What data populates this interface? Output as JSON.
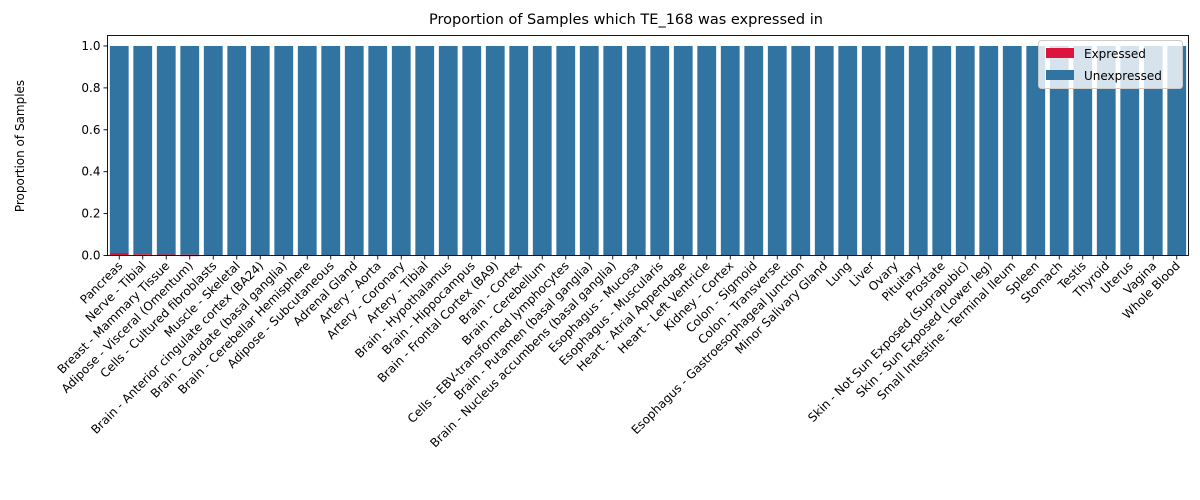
{
  "chart_data": {
    "type": "bar",
    "stacked": true,
    "title": "Proportion of Samples which TE_168 was expressed in",
    "xlabel": "",
    "ylabel": "Proportion of Samples",
    "ylim": [
      0,
      1.05
    ],
    "yticks": [
      "0.0",
      "0.2",
      "0.4",
      "0.6",
      "0.8",
      "1.0"
    ],
    "legend_position": "top-right",
    "grid": false,
    "categories": [
      "Pancreas",
      "Nerve - Tibial",
      "Breast - Mammary Tissue",
      "Adipose - Visceral (Omentum)",
      "Cells - Cultured fibroblasts",
      "Muscle - Skeletal",
      "Brain - Anterior cingulate cortex (BA24)",
      "Brain - Caudate (basal ganglia)",
      "Brain - Cerebellar Hemisphere",
      "Adipose - Subcutaneous",
      "Adrenal Gland",
      "Artery - Aorta",
      "Artery - Coronary",
      "Artery - Tibial",
      "Brain - Hypothalamus",
      "Brain - Hippocampus",
      "Brain - Frontal Cortex (BA9)",
      "Brain - Cortex",
      "Brain - Cerebellum",
      "Cells - EBV-transformed lymphocytes",
      "Brain - Putamen (basal ganglia)",
      "Brain - Nucleus accumbens (basal ganglia)",
      "Esophagus - Mucosa",
      "Esophagus - Muscularis",
      "Heart - Atrial Appendage",
      "Heart - Left Ventricle",
      "Kidney - Cortex",
      "Colon - Sigmoid",
      "Colon - Transverse",
      "Esophagus - Gastroesophageal Junction",
      "Minor Salivary Gland",
      "Lung",
      "Liver",
      "Ovary",
      "Pituitary",
      "Prostate",
      "Skin - Not Sun Exposed (Suprapubic)",
      "Skin - Sun Exposed (Lower leg)",
      "Small Intestine - Terminal Ileum",
      "Spleen",
      "Stomach",
      "Testis",
      "Thyroid",
      "Uterus",
      "Vagina",
      "Whole Blood"
    ],
    "series": [
      {
        "name": "Expressed",
        "color": "#dc143c",
        "values": [
          0.012,
          0.006,
          0.005,
          0.004,
          0,
          0,
          0,
          0,
          0,
          0,
          0,
          0,
          0,
          0,
          0,
          0,
          0,
          0,
          0,
          0,
          0,
          0,
          0,
          0,
          0,
          0,
          0,
          0,
          0,
          0,
          0,
          0,
          0,
          0,
          0,
          0,
          0,
          0,
          0,
          0,
          0,
          0,
          0,
          0,
          0,
          0
        ]
      },
      {
        "name": "Unexpressed",
        "color": "#3274a1",
        "values": [
          0.988,
          0.994,
          0.995,
          0.996,
          1,
          1,
          1,
          1,
          1,
          1,
          1,
          1,
          1,
          1,
          1,
          1,
          1,
          1,
          1,
          1,
          1,
          1,
          1,
          1,
          1,
          1,
          1,
          1,
          1,
          1,
          1,
          1,
          1,
          1,
          1,
          1,
          1,
          1,
          1,
          1,
          1,
          1,
          1,
          1,
          1,
          1
        ]
      }
    ]
  }
}
